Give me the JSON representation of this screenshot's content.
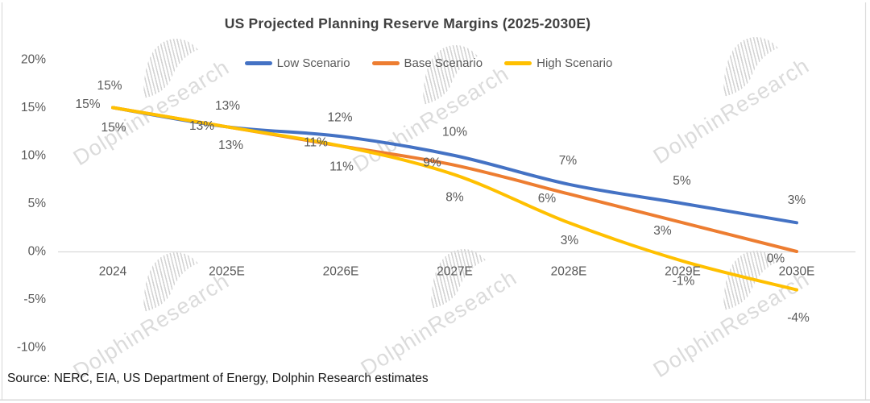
{
  "title": "US Projected Planning Reserve Margins (2025-2030E)",
  "source_note": "Source: NERC, EIA, US Department of Energy, Dolphin Research estimates",
  "watermark_text": "DolphinResearch",
  "colors": {
    "low_scenario": "#4472C4",
    "base_scenario": "#ED7D31",
    "high_scenario": "#FFC000",
    "zero_gridline": "#D9D9D9",
    "frame": "#DCDCDC",
    "axis_text": "#595959",
    "data_label_text": "#595959",
    "title_text": "#404040",
    "source_text": "#161616"
  },
  "chart_data": {
    "type": "line",
    "title": "US Projected Planning Reserve Margins (2025-2030E)",
    "categories": [
      "2024",
      "2025E",
      "2026E",
      "2027E",
      "2028E",
      "2029E",
      "2030E"
    ],
    "series": [
      {
        "name": "Low Scenario",
        "color": "#4472C4",
        "values": [
          15,
          13,
          12,
          10,
          7,
          5,
          3
        ],
        "labels": [
          "15%",
          "13%",
          "12%",
          "10%",
          "7%",
          "5%",
          "3%"
        ],
        "label_dx": [
          -4,
          1,
          -1,
          0,
          -1,
          -1,
          0
        ],
        "label_dy": [
          -27,
          -26,
          -23,
          -29,
          -29,
          -28,
          -28
        ]
      },
      {
        "name": "Base Scenario",
        "color": "#ED7D31",
        "values": [
          15,
          13,
          11,
          9,
          6,
          3,
          0
        ],
        "labels": [
          "15%",
          "13%",
          "11%",
          "9%",
          "6%",
          "3%",
          "0%"
        ],
        "label_dx": [
          -31,
          -31,
          -31,
          -28,
          -27,
          -25,
          -26
        ],
        "label_dy": [
          -4,
          -1,
          -4,
          -3,
          6,
          10,
          9
        ]
      },
      {
        "name": "High Scenario",
        "color": "#FFC000",
        "values": [
          15,
          13,
          11,
          8,
          3,
          -1,
          -4
        ],
        "labels": [
          "15%",
          "13%",
          "11%",
          "8%",
          "3%",
          "-1%",
          "-4%"
        ],
        "label_dx": [
          1,
          5,
          1,
          0,
          1,
          1,
          2
        ],
        "label_dy": [
          25,
          23,
          26,
          28,
          22,
          25,
          35
        ]
      }
    ],
    "y_ticks": [
      "20%",
      "15%",
      "10%",
      "5%",
      "0%",
      "-5%",
      "-10%"
    ],
    "y_tick_values": [
      20,
      15,
      10,
      5,
      0,
      -5,
      -10
    ],
    "ylim": [
      -10,
      20
    ],
    "unit": "%",
    "smoothed": true,
    "legend_position": "top-center",
    "gridlines": "horizontal axis line at 0% only"
  }
}
